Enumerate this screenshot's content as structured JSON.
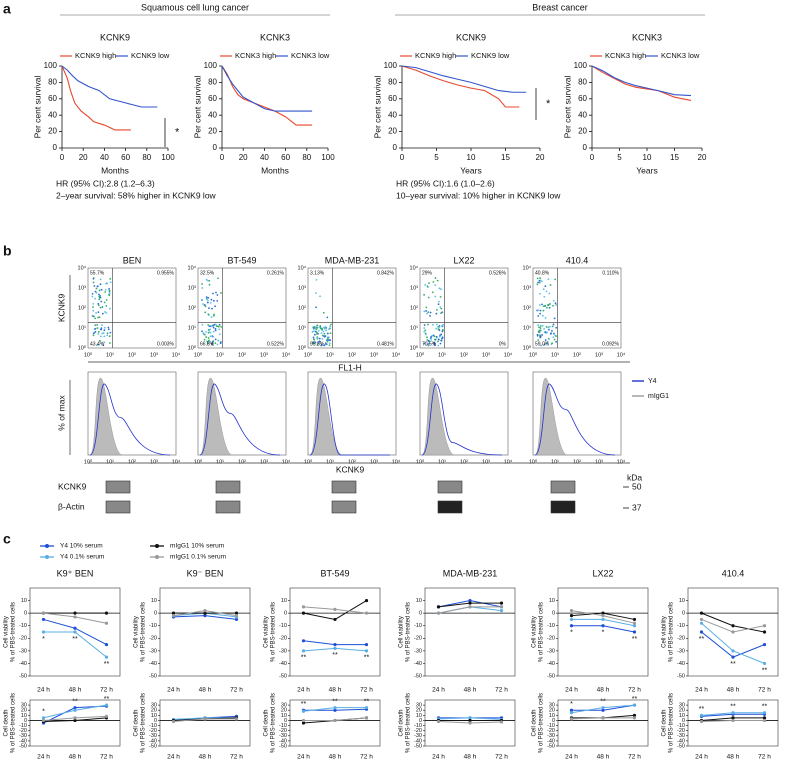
{
  "panel_a": {
    "label": "a",
    "groups": [
      {
        "title": "Squamous cell lung cancer"
      },
      {
        "title": "Breast cancer"
      }
    ],
    "plots": [
      {
        "title": "KCNK9",
        "xlabel": "Months",
        "ylabel": "Per cent survival",
        "xlim": [
          0,
          100
        ],
        "xticks": [
          0,
          20,
          40,
          60,
          80,
          100
        ],
        "ylim": [
          0,
          100
        ],
        "yticks": [
          0,
          20,
          40,
          60,
          80,
          100
        ],
        "series": [
          {
            "name": "KCNK9 high",
            "color": "#e8472e",
            "x": [
              0,
              5,
              8,
              12,
              18,
              25,
              30,
              40,
              50,
              65
            ],
            "y": [
              100,
              85,
              70,
              55,
              45,
              38,
              32,
              28,
              22,
              22
            ]
          },
          {
            "name": "KCNK9 low",
            "color": "#3355cc",
            "x": [
              0,
              5,
              10,
              15,
              25,
              35,
              45,
              60,
              75,
              90
            ],
            "y": [
              100,
              95,
              88,
              82,
              75,
              70,
              60,
              55,
              50,
              50
            ]
          }
        ]
      },
      {
        "title": "KCNK3",
        "xlabel": "Months",
        "ylabel": "Per cent survival",
        "xlim": [
          0,
          100
        ],
        "xticks": [
          0,
          20,
          40,
          60,
          80,
          100
        ],
        "ylim": [
          0,
          100
        ],
        "yticks": [
          0,
          20,
          40,
          60,
          80,
          100
        ],
        "series": [
          {
            "name": "KCNK3 high",
            "color": "#e8472e",
            "x": [
              0,
              5,
              10,
              15,
              20,
              30,
              40,
              50,
              60,
              70,
              85
            ],
            "y": [
              100,
              90,
              75,
              65,
              60,
              55,
              50,
              45,
              38,
              28,
              28
            ]
          },
          {
            "name": "KCNK3 low",
            "color": "#3355cc",
            "x": [
              0,
              5,
              10,
              15,
              20,
              30,
              40,
              50,
              60,
              85
            ],
            "y": [
              100,
              88,
              78,
              70,
              62,
              55,
              48,
              45,
              45,
              45
            ]
          }
        ]
      },
      {
        "title": "KCNK9",
        "xlabel": "Years",
        "ylabel": "Per cent survival",
        "xlim": [
          0,
          20
        ],
        "xticks": [
          0,
          5,
          10,
          15,
          20
        ],
        "ylim": [
          0,
          100
        ],
        "yticks": [
          0,
          20,
          40,
          60,
          80,
          100
        ],
        "series": [
          {
            "name": "KCNK9 high",
            "color": "#e8472e",
            "x": [
              0,
              2,
              4,
              6,
              8,
              10,
              12,
              14,
              15,
              17
            ],
            "y": [
              100,
              95,
              88,
              82,
              77,
              73,
              70,
              60,
              50,
              50
            ]
          },
          {
            "name": "KCNK9 low",
            "color": "#3355cc",
            "x": [
              0,
              2,
              4,
              6,
              8,
              10,
              12,
              14,
              16,
              18
            ],
            "y": [
              100,
              98,
              93,
              88,
              84,
              80,
              75,
              70,
              68,
              68
            ]
          }
        ]
      },
      {
        "title": "KCNK3",
        "xlabel": "Years",
        "ylabel": "Per cent survival",
        "xlim": [
          0,
          20
        ],
        "xticks": [
          0,
          5,
          10,
          15,
          20
        ],
        "ylim": [
          0,
          100
        ],
        "yticks": [
          0,
          20,
          40,
          60,
          80,
          100
        ],
        "series": [
          {
            "name": "KCNK3 high",
            "color": "#e8472e",
            "x": [
              0,
              2,
              4,
              6,
              8,
              10,
              12,
              15,
              18
            ],
            "y": [
              100,
              92,
              85,
              78,
              74,
              72,
              70,
              62,
              58
            ]
          },
          {
            "name": "KCNK3 low",
            "color": "#3355cc",
            "x": [
              0,
              2,
              4,
              6,
              8,
              10,
              12,
              15,
              18
            ],
            "y": [
              100,
              94,
              86,
              80,
              76,
              73,
              70,
              65,
              64
            ]
          }
        ]
      }
    ],
    "notes": [
      {
        "lines": [
          "HR (95% CI):2.8 (1.2–6.3)",
          "2–year survival: 58% higher in KCNK9 low"
        ]
      },
      {
        "lines": [
          "HR (95% CI):1.6 (1.0–2.6)",
          "10–year survival: 10% higher in KCNK9 low"
        ]
      }
    ],
    "significance": [
      "*",
      "*"
    ]
  },
  "panel_b": {
    "label": "b",
    "flow": {
      "ylabel": "KCNK9",
      "xlabel": "FL1-H",
      "ticks": [
        "10⁰",
        "10¹",
        "10²",
        "10³",
        "10⁴"
      ],
      "samples": [
        {
          "name": "BEN",
          "quadrants": [
            "55.7%",
            "0.955%",
            "43.4%",
            "0.003%"
          ]
        },
        {
          "name": "BT-549",
          "quadrants": [
            "32.5%",
            "0.261%",
            "66.8%",
            "0.522%"
          ]
        },
        {
          "name": "MDA-MB-231",
          "quadrants": [
            "3.13%",
            "0.842%",
            "95.5%",
            "0.481%"
          ]
        },
        {
          "name": "LX22",
          "quadrants": [
            "29%",
            "0.526%",
            "70.5%",
            "0%"
          ]
        },
        {
          "name": "410.4",
          "quadrants": [
            "40.8%",
            "0.110%",
            "59.0%",
            "0.092%"
          ]
        }
      ]
    },
    "histogram": {
      "ylabel": "% of max",
      "xlabel": "KCNK9",
      "legend": [
        "Y4",
        "mIgG1"
      ]
    },
    "blot": {
      "rows": [
        "KCNK9",
        "β-Actin"
      ],
      "unit": "kDa",
      "markers": [
        "50",
        "37"
      ]
    }
  },
  "panel_c": {
    "label": "c",
    "legend": [
      {
        "name": "Y4 10% serum",
        "color": "#1f4fd6"
      },
      {
        "name": "Y4 0.1% serum",
        "color": "#5aaee6"
      },
      {
        "name": "mIgG1 10% serum",
        "color": "#111111"
      },
      {
        "name": "mIgG1 0.1% serum",
        "color": "#999999"
      }
    ],
    "categories": [
      "24 h",
      "48 h",
      "72 h"
    ],
    "rows": [
      {
        "ylabel": [
          "Cell viability",
          "% of PBS-treated cells"
        ],
        "ylim": [
          -50,
          20
        ],
        "yticks": [
          -50,
          -40,
          -30,
          -20,
          -10,
          0,
          10
        ]
      },
      {
        "ylabel": [
          "Cell death",
          "% of PBS-treated cells"
        ],
        "ylim": [
          -50,
          40
        ],
        "yticks": [
          -50,
          -40,
          -30,
          -20,
          -10,
          0,
          10,
          20,
          30
        ]
      }
    ],
    "columns": [
      {
        "title": "K9⁺ BEN",
        "plots": [
          {
            "series": [
              [
                -5,
                -12,
                -25
              ],
              [
                -15,
                -15,
                -35
              ],
              [
                0,
                0,
                0
              ],
              [
                0,
                -3,
                -8
              ]
            ],
            "significance": [
              "*",
              "**",
              "**"
            ]
          },
          {
            "series": [
              [
                -5,
                25,
                28
              ],
              [
                5,
                20,
                30
              ],
              [
                -2,
                0,
                5
              ],
              [
                0,
                5,
                8
              ]
            ],
            "significance": [
              "*",
              "**",
              "**"
            ]
          }
        ]
      },
      {
        "title": "K9⁻ BEN",
        "plots": [
          {
            "series": [
              [
                -3,
                -2,
                -5
              ],
              [
                -2,
                0,
                -3
              ],
              [
                0,
                0,
                0
              ],
              [
                -2,
                2,
                -2
              ]
            ],
            "significance": [
              null,
              null,
              null
            ]
          },
          {
            "series": [
              [
                0,
                5,
                8
              ],
              [
                2,
                5,
                5
              ],
              [
                0,
                3,
                5
              ],
              [
                -2,
                3,
                3
              ]
            ],
            "significance": [
              null,
              null,
              null
            ]
          }
        ]
      },
      {
        "title": "BT-549",
        "plots": [
          {
            "series": [
              [
                -22,
                -25,
                -25
              ],
              [
                -30,
                -28,
                -30
              ],
              [
                0,
                -5,
                10
              ],
              [
                5,
                3,
                0
              ]
            ],
            "significance": [
              "**",
              "**",
              "**"
            ]
          },
          {
            "series": [
              [
                20,
                20,
                22
              ],
              [
                18,
                25,
                25
              ],
              [
                -5,
                0,
                5
              ],
              [
                0,
                0,
                5
              ]
            ],
            "significance": [
              "**",
              "**",
              "**"
            ]
          }
        ]
      },
      {
        "title": "MDA-MB-231",
        "plots": [
          {
            "series": [
              [
                5,
                10,
                5
              ],
              [
                0,
                5,
                2
              ],
              [
                5,
                8,
                8
              ],
              [
                0,
                5,
                5
              ]
            ],
            "significance": [
              null,
              null,
              null
            ]
          },
          {
            "series": [
              [
                5,
                5,
                5
              ],
              [
                3,
                5,
                2
              ],
              [
                0,
                0,
                0
              ],
              [
                -2,
                -5,
                -3
              ]
            ],
            "significance": [
              null,
              null,
              null
            ]
          }
        ]
      },
      {
        "title": "LX22",
        "plots": [
          {
            "series": [
              [
                -10,
                -10,
                -15
              ],
              [
                -5,
                -5,
                -10
              ],
              [
                -2,
                0,
                -5
              ],
              [
                2,
                -2,
                -8
              ]
            ],
            "significance": [
              "*",
              "*",
              "**"
            ]
          },
          {
            "series": [
              [
                20,
                20,
                30
              ],
              [
                15,
                25,
                30
              ],
              [
                5,
                5,
                10
              ],
              [
                3,
                5,
                5
              ]
            ],
            "significance": [
              "*",
              "**",
              "**"
            ]
          }
        ]
      },
      {
        "title": "410.4",
        "plots": [
          {
            "series": [
              [
                -15,
                -35,
                -25
              ],
              [
                -8,
                -30,
                -40
              ],
              [
                0,
                -10,
                -15
              ],
              [
                -5,
                -15,
                -10
              ]
            ],
            "significance": [
              "**",
              "**",
              "**"
            ]
          },
          {
            "series": [
              [
                8,
                12,
                12
              ],
              [
                10,
                15,
                15
              ],
              [
                0,
                5,
                5
              ],
              [
                -2,
                0,
                0
              ]
            ],
            "significance": [
              "**",
              "**",
              "**"
            ]
          }
        ]
      }
    ]
  }
}
